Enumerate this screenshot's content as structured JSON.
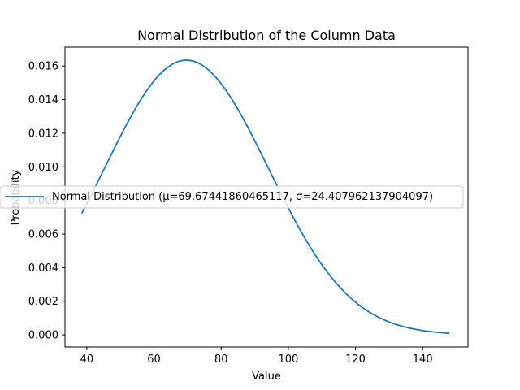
{
  "chart_data": {
    "type": "line",
    "title": "Normal Distribution of the Column Data",
    "xlabel": "Value",
    "ylabel": "Probability",
    "xlim": [
      33.5,
      153.5
    ],
    "ylim": [
      -0.00072,
      0.01712
    ],
    "xticks": [
      40,
      60,
      80,
      100,
      120,
      140
    ],
    "yticks": [
      0.0,
      0.002,
      0.004,
      0.006,
      0.008,
      0.01,
      0.012,
      0.014,
      0.016
    ],
    "xtick_labels": [
      "40",
      "60",
      "80",
      "100",
      "120",
      "140"
    ],
    "ytick_labels": [
      "0.000",
      "0.002",
      "0.004",
      "0.006",
      "0.008",
      "0.010",
      "0.012",
      "0.014",
      "0.016"
    ],
    "grid": false,
    "legend_position": "center-left",
    "color": "#1f77b4",
    "distribution": {
      "mu": 69.67441860465117,
      "sigma": 24.407962137904097,
      "x_min": 38.5,
      "x_max": 148
    },
    "series": [
      {
        "name": "Normal Distribution (μ=69.67441860465117, σ=24.407962137904097)",
        "x": [
          38.5,
          45,
          50,
          55,
          60,
          65,
          69.67,
          75,
          80,
          85,
          90,
          95,
          100,
          105,
          110,
          115,
          120,
          125,
          130,
          135,
          140,
          145,
          148
        ],
        "y": [
          0.00736,
          0.0098,
          0.01183,
          0.01367,
          0.01515,
          0.01608,
          0.01634,
          0.01597,
          0.01491,
          0.01344,
          0.01153,
          0.00947,
          0.00752,
          0.00568,
          0.00415,
          0.00291,
          0.00196,
          0.00126,
          0.00079,
          0.00047,
          0.00026,
          0.00014,
          0.0001
        ]
      }
    ]
  }
}
